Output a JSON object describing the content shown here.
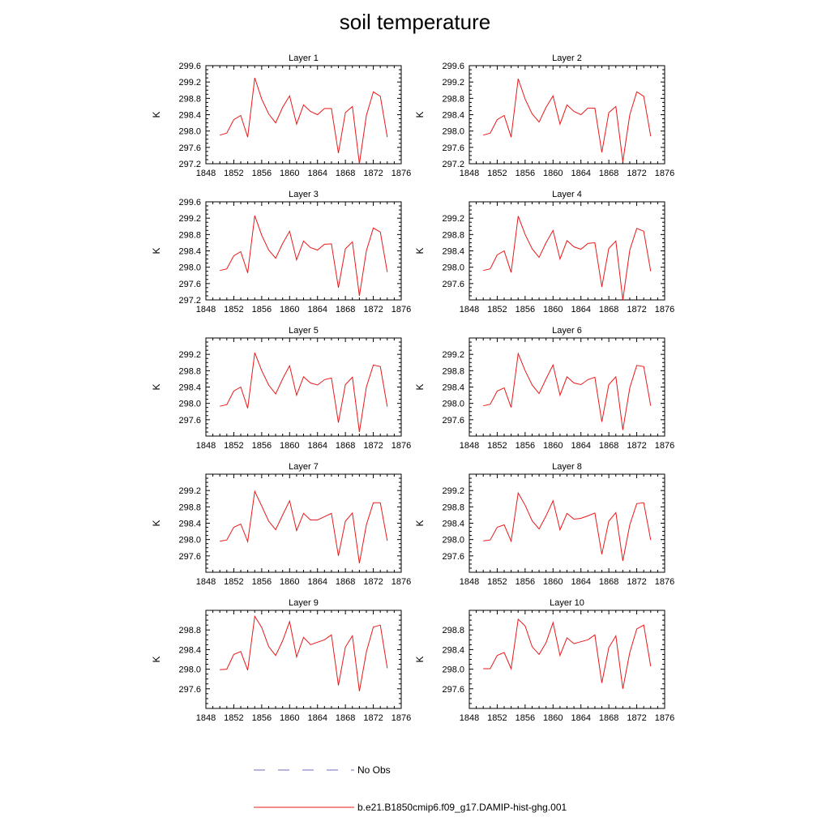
{
  "title": "soil temperature",
  "colors": {
    "model": "#e8191a",
    "obs": "#6b6bbf",
    "axis": "#000000"
  },
  "legend": [
    {
      "label": "No Obs",
      "style": "dashed",
      "color": "#6b6bbf"
    },
    {
      "label": "b.e21.B1850cmip6.f09_g17.DAMIP-hist-ghg.001",
      "style": "solid",
      "color": "#e8191a"
    }
  ],
  "chart_data": [
    {
      "type": "line",
      "title": "Layer 1",
      "ylabel": "K",
      "xlim": [
        1848,
        1876
      ],
      "ylim": [
        297.2,
        299.6
      ],
      "xticks": [
        1848,
        1852,
        1856,
        1860,
        1864,
        1868,
        1872,
        1876
      ],
      "yticks": [
        297.2,
        297.6,
        298.0,
        298.4,
        298.8,
        299.2,
        299.6
      ],
      "x": [
        1850,
        1851,
        1852,
        1853,
        1854,
        1855,
        1856,
        1857,
        1858,
        1859,
        1860,
        1861,
        1862,
        1863,
        1864,
        1865,
        1866,
        1867,
        1868,
        1869,
        1870,
        1871,
        1872,
        1873,
        1874
      ],
      "series": [
        {
          "name": "b.e21.B1850cmip6.f09_g17.DAMIP-hist-ghg.001",
          "values": [
            297.9,
            297.95,
            298.28,
            298.38,
            297.85,
            299.3,
            298.78,
            298.42,
            298.2,
            298.58,
            298.86,
            298.17,
            298.64,
            298.48,
            298.4,
            298.55,
            298.55,
            297.46,
            298.45,
            298.6,
            297.2,
            298.38,
            298.96,
            298.85,
            297.85
          ]
        }
      ]
    },
    {
      "type": "line",
      "title": "Layer 2",
      "ylabel": "K",
      "xlim": [
        1848,
        1876
      ],
      "ylim": [
        297.2,
        299.6
      ],
      "xticks": [
        1848,
        1852,
        1856,
        1860,
        1864,
        1868,
        1872,
        1876
      ],
      "yticks": [
        297.2,
        297.6,
        298.0,
        298.4,
        298.8,
        299.2,
        299.6
      ],
      "x": [
        1850,
        1851,
        1852,
        1853,
        1854,
        1855,
        1856,
        1857,
        1858,
        1859,
        1860,
        1861,
        1862,
        1863,
        1864,
        1865,
        1866,
        1867,
        1868,
        1869,
        1870,
        1871,
        1872,
        1873,
        1874
      ],
      "series": [
        {
          "name": "b.e21.B1850cmip6.f09_g17.DAMIP-hist-ghg.001",
          "values": [
            297.9,
            297.95,
            298.28,
            298.38,
            297.85,
            299.28,
            298.78,
            298.42,
            298.22,
            298.58,
            298.86,
            298.17,
            298.64,
            298.48,
            298.4,
            298.56,
            298.56,
            297.48,
            298.45,
            298.6,
            297.25,
            298.4,
            298.96,
            298.85,
            297.87
          ]
        }
      ]
    },
    {
      "type": "line",
      "title": "Layer 3",
      "ylabel": "K",
      "xlim": [
        1848,
        1876
      ],
      "ylim": [
        297.2,
        299.6
      ],
      "xticks": [
        1848,
        1852,
        1856,
        1860,
        1864,
        1868,
        1872,
        1876
      ],
      "yticks": [
        297.2,
        297.6,
        298.0,
        298.4,
        298.8,
        299.2,
        299.6
      ],
      "x": [
        1850,
        1851,
        1852,
        1853,
        1854,
        1855,
        1856,
        1857,
        1858,
        1859,
        1860,
        1861,
        1862,
        1863,
        1864,
        1865,
        1866,
        1867,
        1868,
        1869,
        1870,
        1871,
        1872,
        1873,
        1874
      ],
      "series": [
        {
          "name": "b.e21.B1850cmip6.f09_g17.DAMIP-hist-ghg.001",
          "values": [
            297.92,
            297.96,
            298.28,
            298.38,
            297.86,
            299.26,
            298.78,
            298.42,
            298.22,
            298.58,
            298.88,
            298.18,
            298.64,
            298.48,
            298.42,
            298.56,
            298.57,
            297.5,
            298.45,
            298.62,
            297.3,
            298.4,
            298.96,
            298.86,
            297.88
          ]
        }
      ]
    },
    {
      "type": "line",
      "title": "Layer 4",
      "ylabel": "K",
      "xlim": [
        1848,
        1876
      ],
      "ylim": [
        297.2,
        299.6
      ],
      "xticks": [
        1848,
        1852,
        1856,
        1860,
        1864,
        1868,
        1872,
        1876
      ],
      "yticks": [
        297.6,
        298.0,
        298.4,
        298.8,
        299.2
      ],
      "x": [
        1850,
        1851,
        1852,
        1853,
        1854,
        1855,
        1856,
        1857,
        1858,
        1859,
        1860,
        1861,
        1862,
        1863,
        1864,
        1865,
        1866,
        1867,
        1868,
        1869,
        1870,
        1871,
        1872,
        1873,
        1874
      ],
      "series": [
        {
          "name": "b.e21.B1850cmip6.f09_g17.DAMIP-hist-ghg.001",
          "values": [
            297.92,
            297.96,
            298.3,
            298.4,
            297.87,
            299.25,
            298.8,
            298.45,
            298.24,
            298.6,
            298.9,
            298.2,
            298.65,
            298.5,
            298.44,
            298.58,
            298.6,
            297.52,
            298.46,
            298.64,
            297.2,
            298.42,
            298.95,
            298.88,
            297.9
          ]
        }
      ]
    },
    {
      "type": "line",
      "title": "Layer 5",
      "ylabel": "K",
      "xlim": [
        1848,
        1876
      ],
      "ylim": [
        297.2,
        299.6
      ],
      "xticks": [
        1848,
        1852,
        1856,
        1860,
        1864,
        1868,
        1872,
        1876
      ],
      "yticks": [
        297.6,
        298.0,
        298.4,
        298.8,
        299.2
      ],
      "x": [
        1850,
        1851,
        1852,
        1853,
        1854,
        1855,
        1856,
        1857,
        1858,
        1859,
        1860,
        1861,
        1862,
        1863,
        1864,
        1865,
        1866,
        1867,
        1868,
        1869,
        1870,
        1871,
        1872,
        1873,
        1874
      ],
      "series": [
        {
          "name": "b.e21.B1850cmip6.f09_g17.DAMIP-hist-ghg.001",
          "values": [
            297.93,
            297.97,
            298.3,
            298.4,
            297.88,
            299.24,
            298.8,
            298.45,
            298.23,
            298.6,
            298.92,
            298.2,
            298.65,
            298.5,
            298.45,
            298.58,
            298.62,
            297.53,
            298.46,
            298.64,
            297.3,
            298.4,
            298.94,
            298.9,
            297.92
          ]
        }
      ]
    },
    {
      "type": "line",
      "title": "Layer 6",
      "ylabel": "K",
      "xlim": [
        1848,
        1876
      ],
      "ylim": [
        297.2,
        299.6
      ],
      "xticks": [
        1848,
        1852,
        1856,
        1860,
        1864,
        1868,
        1872,
        1876
      ],
      "yticks": [
        297.6,
        298.0,
        298.4,
        298.8,
        299.2
      ],
      "x": [
        1850,
        1851,
        1852,
        1853,
        1854,
        1855,
        1856,
        1857,
        1858,
        1859,
        1860,
        1861,
        1862,
        1863,
        1864,
        1865,
        1866,
        1867,
        1868,
        1869,
        1870,
        1871,
        1872,
        1873,
        1874
      ],
      "series": [
        {
          "name": "b.e21.B1850cmip6.f09_g17.DAMIP-hist-ghg.001",
          "values": [
            297.94,
            297.98,
            298.3,
            298.38,
            297.9,
            299.22,
            298.8,
            298.45,
            298.24,
            298.6,
            298.94,
            298.2,
            298.65,
            298.5,
            298.46,
            298.58,
            298.64,
            297.55,
            298.46,
            298.65,
            297.35,
            298.38,
            298.93,
            298.9,
            297.94
          ]
        }
      ]
    },
    {
      "type": "line",
      "title": "Layer 7",
      "ylabel": "K",
      "xlim": [
        1848,
        1876
      ],
      "ylim": [
        297.2,
        299.6
      ],
      "xticks": [
        1848,
        1852,
        1856,
        1860,
        1864,
        1868,
        1872,
        1876
      ],
      "yticks": [
        297.6,
        298.0,
        298.4,
        298.8,
        299.2
      ],
      "x": [
        1850,
        1851,
        1852,
        1853,
        1854,
        1855,
        1856,
        1857,
        1858,
        1859,
        1860,
        1861,
        1862,
        1863,
        1864,
        1865,
        1866,
        1867,
        1868,
        1869,
        1870,
        1871,
        1872,
        1873,
        1874
      ],
      "series": [
        {
          "name": "b.e21.B1850cmip6.f09_g17.DAMIP-hist-ghg.001",
          "values": [
            297.96,
            297.99,
            298.3,
            298.38,
            297.95,
            299.18,
            298.82,
            298.45,
            298.24,
            298.6,
            298.95,
            298.22,
            298.64,
            298.48,
            298.48,
            298.56,
            298.64,
            297.6,
            298.45,
            298.65,
            297.42,
            298.36,
            298.9,
            298.9,
            297.97
          ]
        }
      ]
    },
    {
      "type": "line",
      "title": "Layer 8",
      "ylabel": "K",
      "xlim": [
        1848,
        1876
      ],
      "ylim": [
        297.2,
        299.6
      ],
      "xticks": [
        1848,
        1852,
        1856,
        1860,
        1864,
        1868,
        1872,
        1876
      ],
      "yticks": [
        297.6,
        298.0,
        298.4,
        298.8,
        299.2
      ],
      "x": [
        1850,
        1851,
        1852,
        1853,
        1854,
        1855,
        1856,
        1857,
        1858,
        1859,
        1860,
        1861,
        1862,
        1863,
        1864,
        1865,
        1866,
        1867,
        1868,
        1869,
        1870,
        1871,
        1872,
        1873,
        1874
      ],
      "series": [
        {
          "name": "b.e21.B1850cmip6.f09_g17.DAMIP-hist-ghg.001",
          "values": [
            297.97,
            297.99,
            298.3,
            298.36,
            297.96,
            299.14,
            298.84,
            298.46,
            298.26,
            298.58,
            298.95,
            298.24,
            298.64,
            298.5,
            298.52,
            298.58,
            298.65,
            297.64,
            298.45,
            298.66,
            297.48,
            298.36,
            298.88,
            298.9,
            297.99
          ]
        }
      ]
    },
    {
      "type": "line",
      "title": "Layer 9",
      "ylabel": "K",
      "xlim": [
        1848,
        1876
      ],
      "ylim": [
        297.2,
        299.2
      ],
      "xticks": [
        1848,
        1852,
        1856,
        1860,
        1864,
        1868,
        1872,
        1876
      ],
      "yticks": [
        297.6,
        298.0,
        298.4,
        298.8
      ],
      "x": [
        1850,
        1851,
        1852,
        1853,
        1854,
        1855,
        1856,
        1857,
        1858,
        1859,
        1860,
        1861,
        1862,
        1863,
        1864,
        1865,
        1866,
        1867,
        1868,
        1869,
        1870,
        1871,
        1872,
        1873,
        1874
      ],
      "series": [
        {
          "name": "b.e21.B1850cmip6.f09_g17.DAMIP-hist-ghg.001",
          "values": [
            297.99,
            298.0,
            298.3,
            298.36,
            297.98,
            299.08,
            298.85,
            298.46,
            298.28,
            298.58,
            298.97,
            298.25,
            298.65,
            298.5,
            298.55,
            298.6,
            298.7,
            297.67,
            298.45,
            298.68,
            297.55,
            298.35,
            298.86,
            298.9,
            298.02
          ]
        }
      ]
    },
    {
      "type": "line",
      "title": "Layer 10",
      "ylabel": "K",
      "xlim": [
        1848,
        1876
      ],
      "ylim": [
        297.2,
        299.2
      ],
      "xticks": [
        1848,
        1852,
        1856,
        1860,
        1864,
        1868,
        1872,
        1876
      ],
      "yticks": [
        297.6,
        298.0,
        298.4,
        298.8
      ],
      "x": [
        1850,
        1851,
        1852,
        1853,
        1854,
        1855,
        1856,
        1857,
        1858,
        1859,
        1860,
        1861,
        1862,
        1863,
        1864,
        1865,
        1866,
        1867,
        1868,
        1869,
        1870,
        1871,
        1872,
        1873,
        1874
      ],
      "series": [
        {
          "name": "b.e21.B1850cmip6.f09_g17.DAMIP-hist-ghg.001",
          "values": [
            298.01,
            298.01,
            298.28,
            298.34,
            298.01,
            299.02,
            298.88,
            298.46,
            298.3,
            298.54,
            298.95,
            298.28,
            298.64,
            298.52,
            298.56,
            298.6,
            298.7,
            297.72,
            298.44,
            298.68,
            297.6,
            298.34,
            298.82,
            298.9,
            298.06
          ]
        }
      ]
    }
  ]
}
